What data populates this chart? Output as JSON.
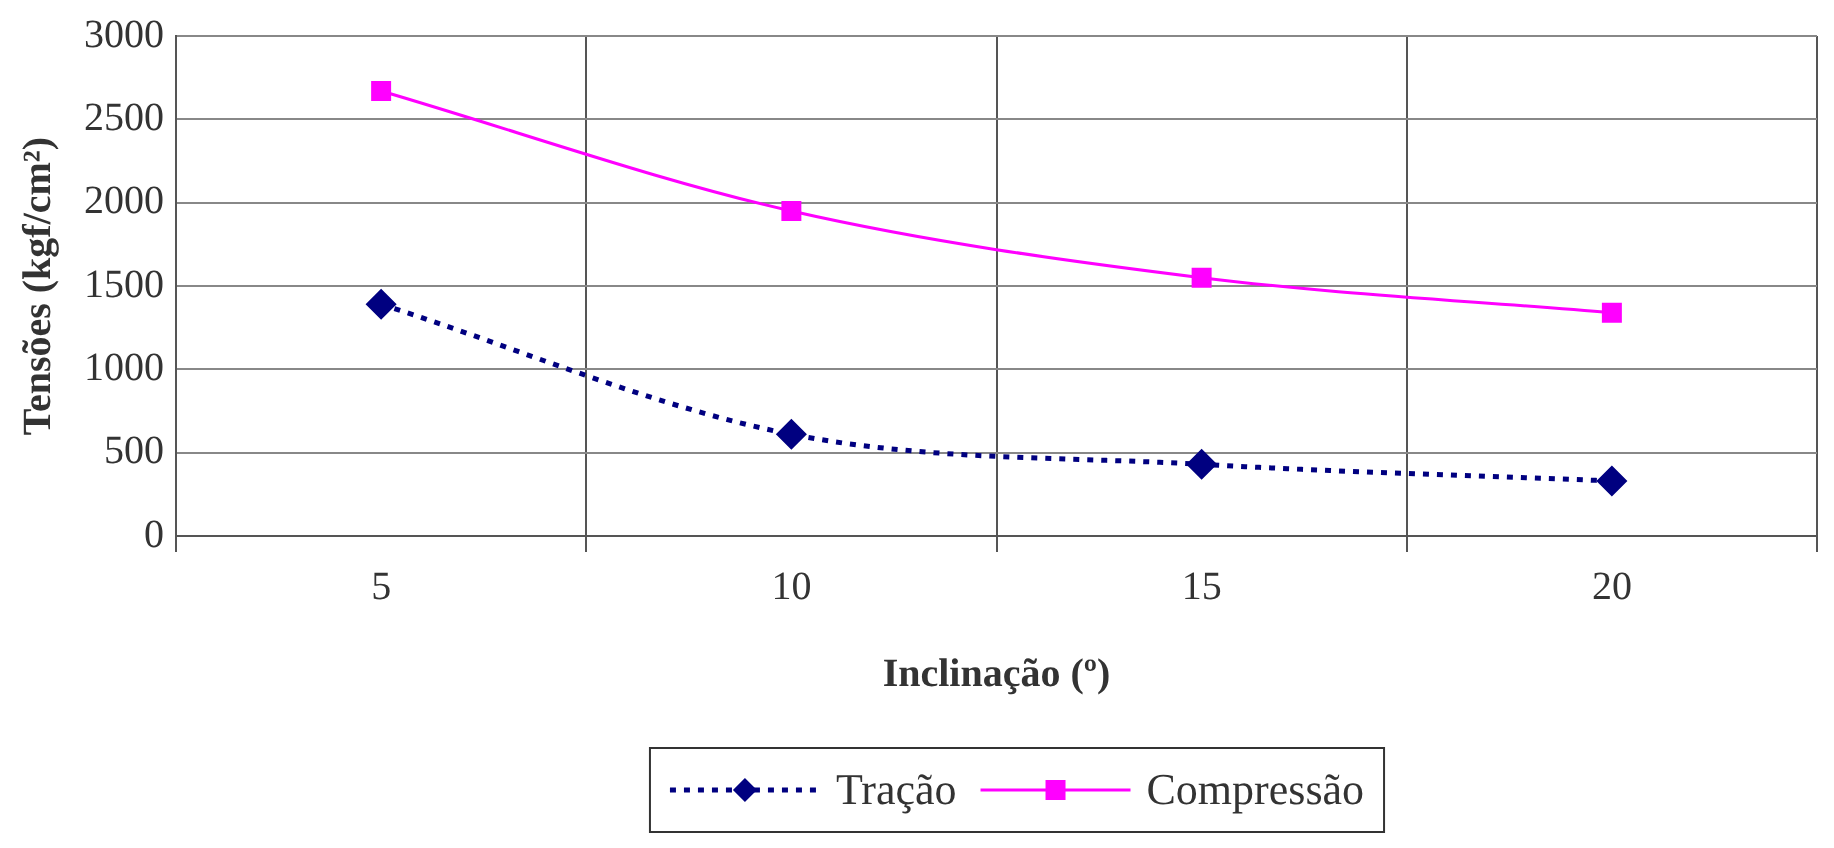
{
  "chart_data": {
    "type": "line",
    "xlabel": "Inclinação (º)",
    "ylabel": "Tensões (kgf/cm²)",
    "categories": [
      "5",
      "10",
      "15",
      "20"
    ],
    "series": [
      {
        "name": "Tração",
        "color": "#000080",
        "values": [
          1390,
          610,
          430,
          330
        ],
        "marker": "diamond",
        "line_style": "dotted"
      },
      {
        "name": "Compressão",
        "color": "#ff00ff",
        "values": [
          2670,
          1950,
          1550,
          1340
        ],
        "marker": "square",
        "line_style": "solid"
      }
    ],
    "ylim": [
      0,
      3000
    ],
    "yticks": [
      0,
      500,
      1000,
      1500,
      2000,
      2500,
      3000
    ],
    "grid": true,
    "legend": "bottom"
  }
}
